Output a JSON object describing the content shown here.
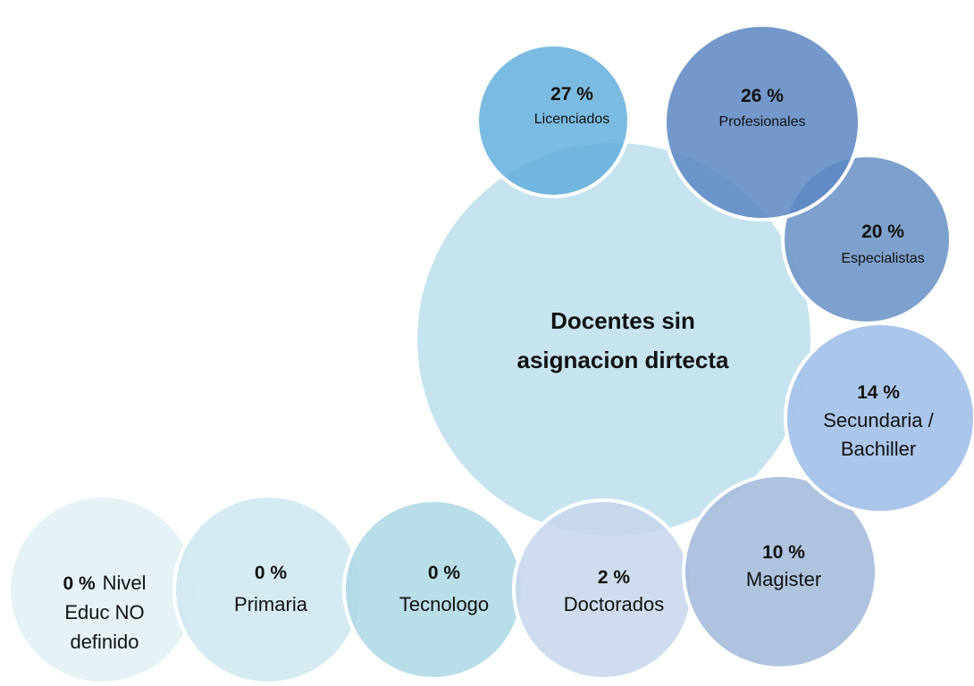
{
  "center": {
    "lines": [
      "Docentes sin",
      "asignacion dirtecta"
    ]
  },
  "nodes": [
    {
      "percent": "27 %",
      "lines": [
        "Licenciados"
      ]
    },
    {
      "percent": "26 %",
      "lines": [
        "Profesionales"
      ]
    },
    {
      "percent": "20  %",
      "lines": [
        "Especialistas"
      ]
    },
    {
      "percent": "14 %",
      "lines": [
        "Secundaria /",
        "Bachiller"
      ]
    },
    {
      "percent": "10  %",
      "lines": [
        "Magister"
      ]
    },
    {
      "percent": "2  %",
      "lines": [
        "Doctorados"
      ]
    },
    {
      "percent": "0  %",
      "lines": [
        "Tecnologo"
      ]
    },
    {
      "percent": "0  %",
      "lines": [
        "Primaria"
      ]
    },
    {
      "percent": "0 %",
      "lines": [
        "Nivel",
        "Educ NO",
        "definido"
      ]
    }
  ]
}
